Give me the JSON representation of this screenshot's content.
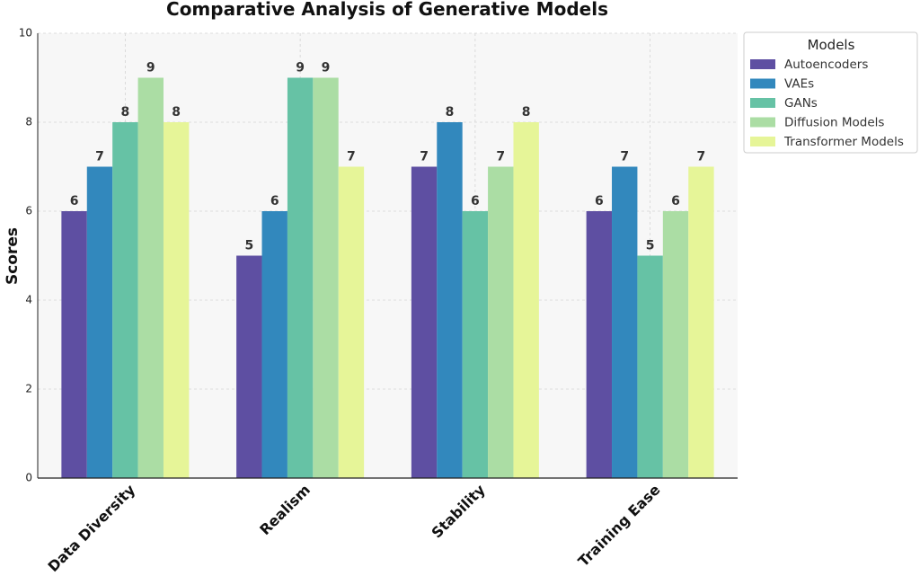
{
  "chart_data": {
    "type": "bar",
    "title": "Comparative Analysis of Generative Models",
    "xlabel": "",
    "ylabel": "Scores",
    "ylim": [
      0,
      10
    ],
    "yticks": [
      "0",
      "2",
      "4",
      "6",
      "8",
      "10"
    ],
    "grid": true,
    "legend_title": "Models",
    "legend_position": "outside-top-right",
    "categories": [
      "Data Diversity",
      "Realism",
      "Stability",
      "Training Ease"
    ],
    "series": [
      {
        "name": "Autoencoders",
        "color": "#5e4fa2",
        "values": [
          6,
          5,
          7,
          6
        ]
      },
      {
        "name": "VAEs",
        "color": "#3288bd",
        "values": [
          7,
          6,
          8,
          7
        ]
      },
      {
        "name": "GANs",
        "color": "#66c2a5",
        "values": [
          8,
          9,
          6,
          5
        ]
      },
      {
        "name": "Diffusion Models",
        "color": "#abdda4",
        "values": [
          9,
          9,
          7,
          6
        ]
      },
      {
        "name": "Transformer Models",
        "color": "#e6f598",
        "values": [
          8,
          7,
          8,
          7
        ]
      }
    ]
  }
}
